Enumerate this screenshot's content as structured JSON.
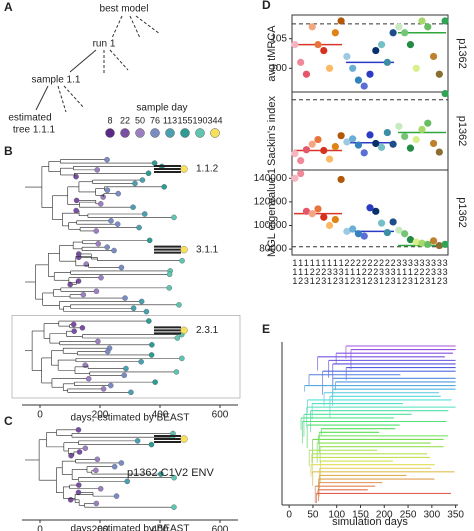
{
  "panel_labels": [
    "A",
    "B",
    "C",
    "D",
    "E"
  ],
  "diagram": {
    "nodes": [
      "best model",
      "run 1",
      "sample 1.1",
      [
        "estimated",
        "tree 1.1.1"
      ]
    ]
  },
  "legend": {
    "title": "sample day",
    "items": [
      {
        "label": "8",
        "color": "#5b2a86"
      },
      {
        "label": "22",
        "color": "#7a4fa3"
      },
      {
        "label": "50",
        "color": "#9b7fc0"
      },
      {
        "label": "76",
        "color": "#7a8cc4"
      },
      {
        "label": "113",
        "color": "#4aa0b0"
      },
      {
        "label": "155",
        "color": "#2f9c93"
      },
      {
        "label": "190",
        "color": "#5fc4b0"
      },
      {
        "label": "344",
        "color": "#f7e15a"
      }
    ]
  },
  "chart_data": [
    {
      "type": "tree",
      "xlim": [
        -60,
        660
      ],
      "xticks": [
        0,
        200,
        400,
        600
      ],
      "xlabel": "days, estimated by BEAST",
      "labels": [
        "1.1.2",
        "3.1.1",
        "2.3.1"
      ]
    },
    {
      "type": "tree",
      "xlim": [
        -60,
        660
      ],
      "xticks": [
        0,
        200,
        400,
        600
      ],
      "xlabel": "days, estimated by BEAST",
      "labels": [
        "p1362 C1V2 ENV"
      ]
    },
    {
      "type": "scatter",
      "ylabel": "avg tMRCA",
      "side_label": "p1362",
      "ylim": [
        96,
        109
      ],
      "yticks": [
        100,
        105
      ],
      "reference": 107.5,
      "values": [
        104,
        101,
        99,
        107,
        104,
        103,
        100,
        106,
        108,
        102,
        100,
        98,
        97,
        99,
        103,
        104,
        101,
        106,
        107,
        106,
        104,
        100,
        108,
        107,
        102,
        99,
        108
      ],
      "group_means": [
        {
          "value": 104,
          "color": "#d9362b"
        },
        {
          "value": 101,
          "color": "#2b3bc4"
        },
        {
          "value": 106,
          "color": "#2ea83a"
        }
      ],
      "colors": [
        "#f6b3c0",
        "#f08a9a",
        "#e4576a",
        "#f4a582",
        "#e8743b",
        "#d7301f",
        "#fdb863",
        "#e08214",
        "#b35806",
        "#9ecae1",
        "#6baed6",
        "#3182bd",
        "#5a6fd6",
        "#2b3bc4",
        "#08306b",
        "#74c0c7",
        "#3b8ea5",
        "#1d4e89",
        "#c7e9c0",
        "#74c476",
        "#238b45",
        "#d9ef8b",
        "#a6d96a",
        "#66bd63",
        "#bf812d",
        "#8c6d31",
        "#31a354"
      ]
    },
    {
      "type": "scatter",
      "ylabel": "Sackin's index",
      "side_label": "p1362",
      "ylim": [
        0,
        10
      ],
      "yticks": [],
      "reference": 9,
      "values": [
        2.1,
        1.2,
        2.6,
        3.3,
        3.9,
        2.5,
        1.4,
        3.0,
        4.4,
        3.6,
        4.0,
        3.2,
        2.2,
        4.5,
        3.4,
        2.9,
        4.8,
        3.3,
        5.6,
        4.3,
        2.8,
        3.9,
        5.2,
        6.0,
        3.4,
        2.3,
        9.8
      ],
      "group_means": [
        {
          "value": 2.5,
          "color": "#d9362b"
        },
        {
          "value": 3.5,
          "color": "#2b3bc4"
        },
        {
          "value": 4.8,
          "color": "#2ea83a"
        }
      ],
      "colors": [
        "#f6b3c0",
        "#f08a9a",
        "#e4576a",
        "#f4a582",
        "#e8743b",
        "#d7301f",
        "#fdb863",
        "#e08214",
        "#b35806",
        "#9ecae1",
        "#6baed6",
        "#3182bd",
        "#5a6fd6",
        "#2b3bc4",
        "#08306b",
        "#74c0c7",
        "#3b8ea5",
        "#1d4e89",
        "#c7e9c0",
        "#74c476",
        "#238b45",
        "#d9ef8b",
        "#a6d96a",
        "#66bd63",
        "#bf812d",
        "#8c6d31",
        "#31a354"
      ]
    },
    {
      "type": "scatter",
      "ylabel": "MGL eigenvalue 1",
      "side_label": "p1362",
      "ylim": [
        75000,
        147000
      ],
      "yticks": [
        80000,
        100000,
        120000,
        140000
      ],
      "reference": 82000,
      "categories": [
        "111",
        "112",
        "113",
        "121",
        "122",
        "123",
        "131",
        "132",
        "133",
        "211",
        "212",
        "213",
        "221",
        "222",
        "223",
        "231",
        "232",
        "233",
        "311",
        "312",
        "313",
        "321",
        "322",
        "323",
        "331",
        "332",
        "333"
      ],
      "values": [
        140000,
        144000,
        112000,
        110000,
        114000,
        107000,
        100000,
        105000,
        139000,
        95000,
        97000,
        93000,
        91000,
        115000,
        112000,
        102000,
        94000,
        103000,
        96000,
        93000,
        88000,
        86000,
        85000,
        84000,
        87000,
        83000,
        84000
      ],
      "group_means": [
        {
          "value": 110000,
          "color": "#d9362b"
        },
        {
          "value": 95000,
          "color": "#2b3bc4"
        },
        {
          "value": 83000,
          "color": "#2ea83a"
        }
      ],
      "colors": [
        "#f6b3c0",
        "#f08a9a",
        "#e4576a",
        "#f4a582",
        "#e8743b",
        "#d7301f",
        "#fdb863",
        "#e08214",
        "#b35806",
        "#9ecae1",
        "#6baed6",
        "#3182bd",
        "#5a6fd6",
        "#2b3bc4",
        "#08306b",
        "#74c0c7",
        "#3b8ea5",
        "#1d4e89",
        "#c7e9c0",
        "#74c476",
        "#238b45",
        "#d9ef8b",
        "#a6d96a",
        "#66bd63",
        "#bf812d",
        "#8c6d31",
        "#31a354"
      ]
    },
    {
      "type": "lineage",
      "xlim": [
        -15,
        355
      ],
      "xticks": [
        0,
        50,
        100,
        150,
        200,
        250,
        300,
        350
      ],
      "xlabel": "simulation days"
    }
  ]
}
